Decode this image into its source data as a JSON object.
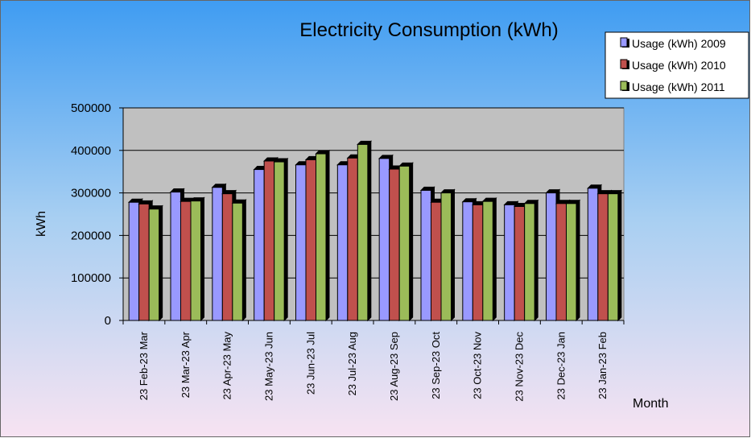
{
  "chart_data": {
    "type": "bar",
    "title": "Electricity Consumption (kWh)",
    "xlabel": "Month",
    "ylabel": "kWh",
    "ylim": [
      0,
      500000
    ],
    "yticks": [
      0,
      100000,
      200000,
      300000,
      400000,
      500000
    ],
    "grid": true,
    "legend_position": "top-right",
    "categories": [
      "23 Feb-23 Mar",
      "23 Mar-23 Apr",
      "23 Apr-23 May",
      "23 May-23 Jun",
      "23 Jun-23 Jul",
      "23 Jul-23 Aug",
      "23 Aug-23 Sep",
      "23 Sep-23 Oct",
      "23 Oct-23 Nov",
      "23 Nov-23 Dec",
      "23 Dec-23 Jan",
      "23 Jan-23 Feb"
    ],
    "series": [
      {
        "name": "Usage (kWh) 2009",
        "color": "#9999ff",
        "values": [
          278000,
          302000,
          313000,
          355000,
          366000,
          366000,
          381000,
          306000,
          279000,
          272000,
          300000,
          311000
        ]
      },
      {
        "name": "Usage (kWh) 2010",
        "color": "#c0504d",
        "values": [
          274000,
          280000,
          298000,
          375000,
          378000,
          382000,
          356000,
          278000,
          272000,
          268000,
          275000,
          298000
        ]
      },
      {
        "name": "Usage (kWh) 2011",
        "color": "#9bbb59",
        "values": [
          262000,
          281000,
          276000,
          373000,
          392000,
          414000,
          363000,
          300000,
          280000,
          275000,
          275000,
          298000
        ]
      }
    ]
  }
}
